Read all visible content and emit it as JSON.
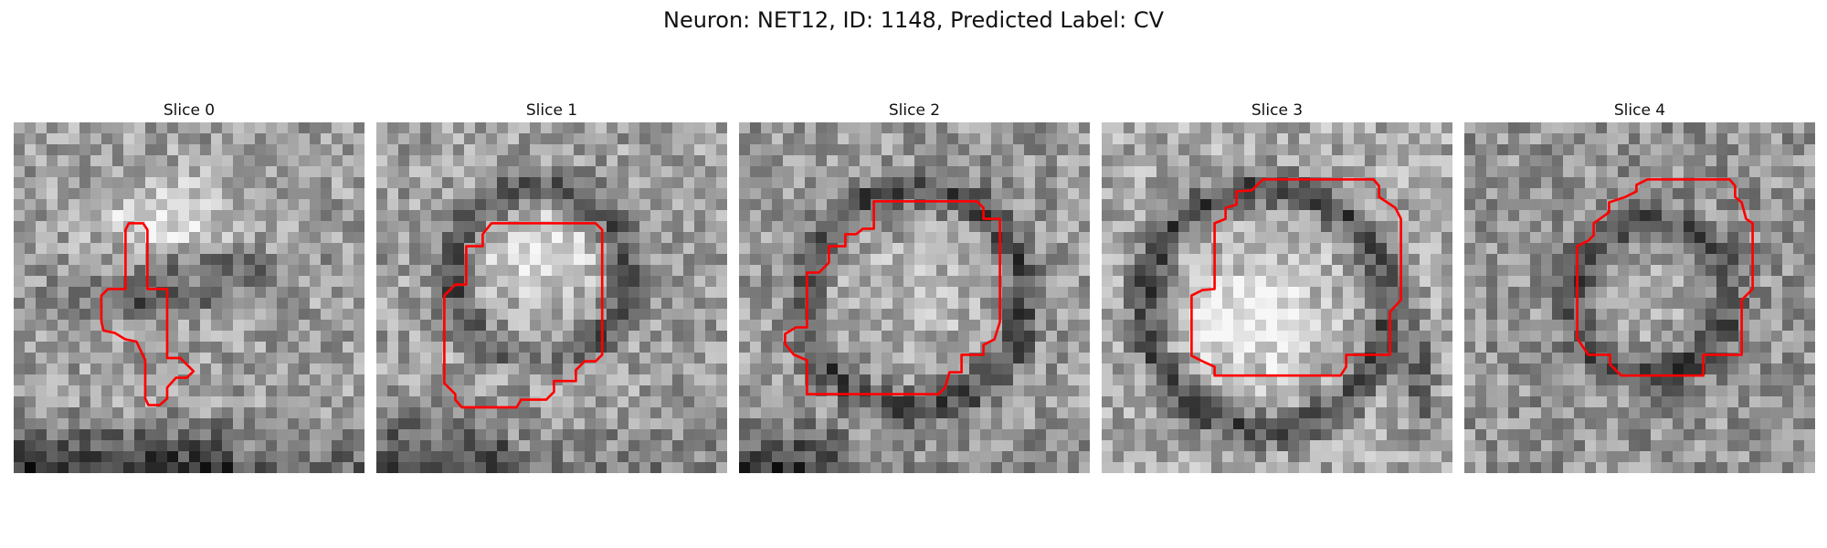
{
  "figure": {
    "title": "Neuron: NET12, ID: 1148, Predicted Label: CV",
    "outline_color": "#ff0000",
    "grid_size": 32,
    "colormap": "gray"
  },
  "slices": [
    {
      "label": "Slice 0"
    },
    {
      "label": "Slice 1"
    },
    {
      "label": "Slice 2"
    },
    {
      "label": "Slice 3"
    },
    {
      "label": "Slice 4"
    }
  ]
}
